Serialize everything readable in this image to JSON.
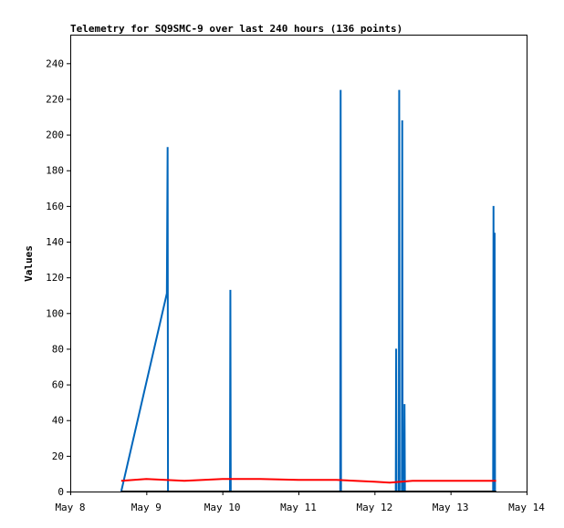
{
  "chart_data": {
    "type": "line",
    "title": "Telemetry for SQ9SMC-9 over last 240 hours (136 points)",
    "xlabel": "",
    "ylabel": "Values",
    "x_ticks": [
      "May 8",
      "May 9",
      "May 10",
      "May 11",
      "May 12",
      "May 13",
      "May 14"
    ],
    "y_ticks": [
      "0",
      "20",
      "40",
      "60",
      "80",
      "100",
      "120",
      "140",
      "160",
      "180",
      "200",
      "220",
      "240"
    ],
    "xlim": [
      0,
      6
    ],
    "ylim": [
      0,
      256
    ],
    "colors": {
      "blue": "#0066bb",
      "red": "#ff0000",
      "black": "#000000"
    },
    "series": [
      {
        "color": "#0066bb",
        "points": [
          [
            0.67,
            0
          ],
          [
            1.27,
            111
          ],
          [
            1.28,
            193
          ],
          [
            1.285,
            0
          ],
          [
            2.1,
            0
          ],
          [
            2.105,
            113
          ],
          [
            2.11,
            0
          ],
          [
            3.55,
            0
          ],
          [
            3.555,
            225
          ],
          [
            3.56,
            0
          ],
          [
            4.28,
            0
          ],
          [
            4.285,
            80
          ],
          [
            4.29,
            0
          ],
          [
            4.32,
            0
          ],
          [
            4.325,
            225
          ],
          [
            4.33,
            0
          ],
          [
            4.36,
            0
          ],
          [
            4.365,
            208
          ],
          [
            4.37,
            0
          ],
          [
            4.39,
            0
          ],
          [
            4.395,
            49
          ],
          [
            4.4,
            0
          ],
          [
            5.56,
            0
          ],
          [
            5.565,
            160
          ],
          [
            5.57,
            0
          ],
          [
            5.575,
            0
          ],
          [
            5.58,
            145
          ],
          [
            5.585,
            0
          ]
        ]
      },
      {
        "color": "#ff0000",
        "points": [
          [
            0.67,
            6
          ],
          [
            1.0,
            7
          ],
          [
            1.5,
            6
          ],
          [
            2.0,
            7
          ],
          [
            2.5,
            7
          ],
          [
            3.0,
            6.5
          ],
          [
            3.5,
            6.5
          ],
          [
            4.0,
            5.5
          ],
          [
            4.2,
            5
          ],
          [
            4.5,
            6
          ],
          [
            5.0,
            6
          ],
          [
            5.6,
            6
          ]
        ]
      },
      {
        "color": "#000000",
        "points": [
          [
            0.67,
            0
          ],
          [
            5.6,
            0
          ]
        ]
      }
    ]
  }
}
